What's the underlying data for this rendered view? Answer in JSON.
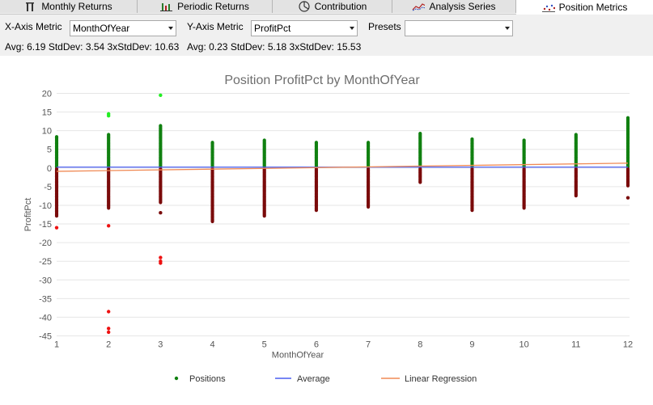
{
  "tabs": [
    {
      "label": "Monthly Returns",
      "icon": "bar-candle-icon",
      "active": false
    },
    {
      "label": "Periodic Returns",
      "icon": "periodic-bars-icon",
      "active": false
    },
    {
      "label": "Contribution",
      "icon": "pie-chart-icon",
      "active": false
    },
    {
      "label": "Analysis Series",
      "icon": "series-chart-icon",
      "active": false
    },
    {
      "label": "Position Metrics",
      "icon": "scatter-dots-icon",
      "active": true
    }
  ],
  "controls": {
    "x_axis_label": "X-Axis Metric",
    "x_axis_value": "MonthOfYear",
    "y_axis_label": "Y-Axis Metric",
    "y_axis_value": "ProfitPct",
    "presets_label": "Presets",
    "presets_value": ""
  },
  "stats": {
    "x": "Avg: 6.19  StdDev: 3.54  3xStdDev: 10.63",
    "y": "Avg: 0.23  StdDev: 5.18  3xStdDev: 15.53"
  },
  "colors": {
    "positive": "#108010",
    "negative": "#7a0a0a",
    "outlier_positive": "#22ee22",
    "outlier_negative": "#ee1111",
    "average": "#4a5ef0",
    "regression": "#f08a55"
  },
  "chart_data": {
    "type": "scatter",
    "title": "Position ProfitPct by MonthOfYear",
    "xlabel": "MonthOfYear",
    "ylabel": "ProfitPct",
    "xlim": [
      1,
      12
    ],
    "ylim": [
      -45,
      20
    ],
    "x_ticks": [
      1,
      2,
      3,
      4,
      5,
      6,
      7,
      8,
      9,
      10,
      11,
      12
    ],
    "y_ticks": [
      20,
      15,
      10,
      5,
      0,
      -5,
      -10,
      -15,
      -20,
      -25,
      -30,
      -35,
      -40,
      -45
    ],
    "grid": "horizontal",
    "legend": {
      "placement": "bottom",
      "entries": [
        "Positions",
        "Average",
        "Linear Regression"
      ]
    },
    "average_y": 0.23,
    "regression": {
      "x": [
        1,
        12
      ],
      "y": [
        -0.9,
        1.3
      ]
    },
    "ranges": [
      {
        "x": 1,
        "max": 8.5,
        "min": -13
      },
      {
        "x": 2,
        "max": 9,
        "min": -11
      },
      {
        "x": 3,
        "max": 11.5,
        "min": -9.5
      },
      {
        "x": 4,
        "max": 7,
        "min": -14.5
      },
      {
        "x": 5,
        "max": 7.5,
        "min": -13
      },
      {
        "x": 6,
        "max": 7,
        "min": -11.5
      },
      {
        "x": 7,
        "max": 7,
        "min": -10.5
      },
      {
        "x": 8,
        "max": 9.5,
        "min": -4
      },
      {
        "x": 9,
        "max": 8,
        "min": -11.5
      },
      {
        "x": 10,
        "max": 7.5,
        "min": -11
      },
      {
        "x": 11,
        "max": 9,
        "min": -7.5
      },
      {
        "x": 12,
        "max": 13.5,
        "min": -5
      }
    ],
    "outliers": [
      {
        "x": 1,
        "y": -16
      },
      {
        "x": 2,
        "y": 14.5
      },
      {
        "x": 2,
        "y": 14
      },
      {
        "x": 2,
        "y": -15.5
      },
      {
        "x": 2,
        "y": -38.5
      },
      {
        "x": 2,
        "y": -43
      },
      {
        "x": 2,
        "y": -44
      },
      {
        "x": 3,
        "y": 19.5
      },
      {
        "x": 3,
        "y": -12
      },
      {
        "x": 3,
        "y": -24
      },
      {
        "x": 3,
        "y": -25
      },
      {
        "x": 3,
        "y": -25.5
      },
      {
        "x": 12,
        "y": -8
      }
    ]
  }
}
